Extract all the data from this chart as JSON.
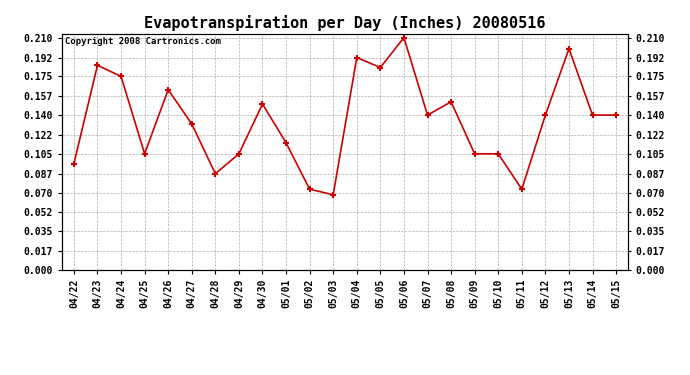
{
  "title": "Evapotranspiration per Day (Inches) 20080516",
  "copyright_text": "Copyright 2008 Cartronics.com",
  "x_labels": [
    "04/22",
    "04/23",
    "04/24",
    "04/25",
    "04/26",
    "04/27",
    "04/28",
    "04/29",
    "04/30",
    "05/01",
    "05/02",
    "05/03",
    "05/04",
    "05/05",
    "05/06",
    "05/07",
    "05/08",
    "05/09",
    "05/10",
    "05/11",
    "05/12",
    "05/13",
    "05/14",
    "05/15"
  ],
  "y_values": [
    0.096,
    0.185,
    0.175,
    0.105,
    0.163,
    0.132,
    0.087,
    0.105,
    0.15,
    0.115,
    0.073,
    0.068,
    0.192,
    0.183,
    0.21,
    0.14,
    0.152,
    0.105,
    0.105,
    0.073,
    0.14,
    0.2,
    0.14,
    0.14
  ],
  "line_color": "#cc0000",
  "marker": "+",
  "marker_size": 5,
  "marker_edge_width": 1.5,
  "bg_color": "#ffffff",
  "plot_bg_color": "#ffffff",
  "grid_color": "#999999",
  "y_ticks": [
    0.0,
    0.017,
    0.035,
    0.052,
    0.07,
    0.087,
    0.105,
    0.122,
    0.14,
    0.157,
    0.175,
    0.192,
    0.21
  ],
  "ylim": [
    0.0,
    0.2135
  ],
  "title_fontsize": 11,
  "copyright_fontsize": 6.5,
  "tick_fontsize": 7,
  "line_width": 1.2
}
